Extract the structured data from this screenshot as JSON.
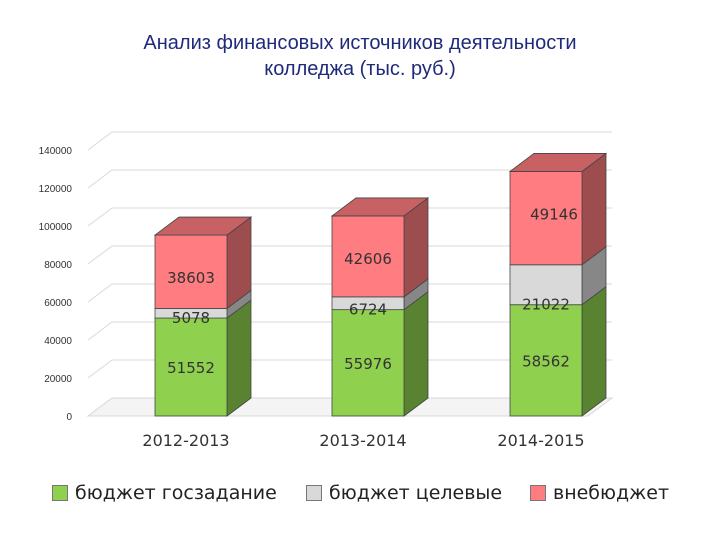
{
  "chart_data": {
    "type": "bar",
    "stacked": true,
    "view": "3d",
    "title": "Анализ финансовых источников деятельности\nколледжа (тыс. руб.)",
    "categories": [
      "2012-2013",
      "2013-2014",
      "2014-2015"
    ],
    "series": [
      {
        "name": "бюджет госзадание",
        "color": "#8fd14f",
        "values": [
          51552,
          55976,
          58562
        ]
      },
      {
        "name": "бюджет целевые",
        "color": "#d9d9d9",
        "values": [
          5078,
          6724,
          21022
        ]
      },
      {
        "name": "внебюджет",
        "color": "#ff7c80",
        "values": [
          38603,
          42606,
          49146
        ]
      }
    ],
    "ylim": [
      0,
      140000
    ],
    "yticks": [
      "0",
      "20000",
      "40000",
      "60000",
      "80000",
      "100000",
      "120000",
      "140000"
    ],
    "grid": true,
    "legend_position": "bottom"
  }
}
